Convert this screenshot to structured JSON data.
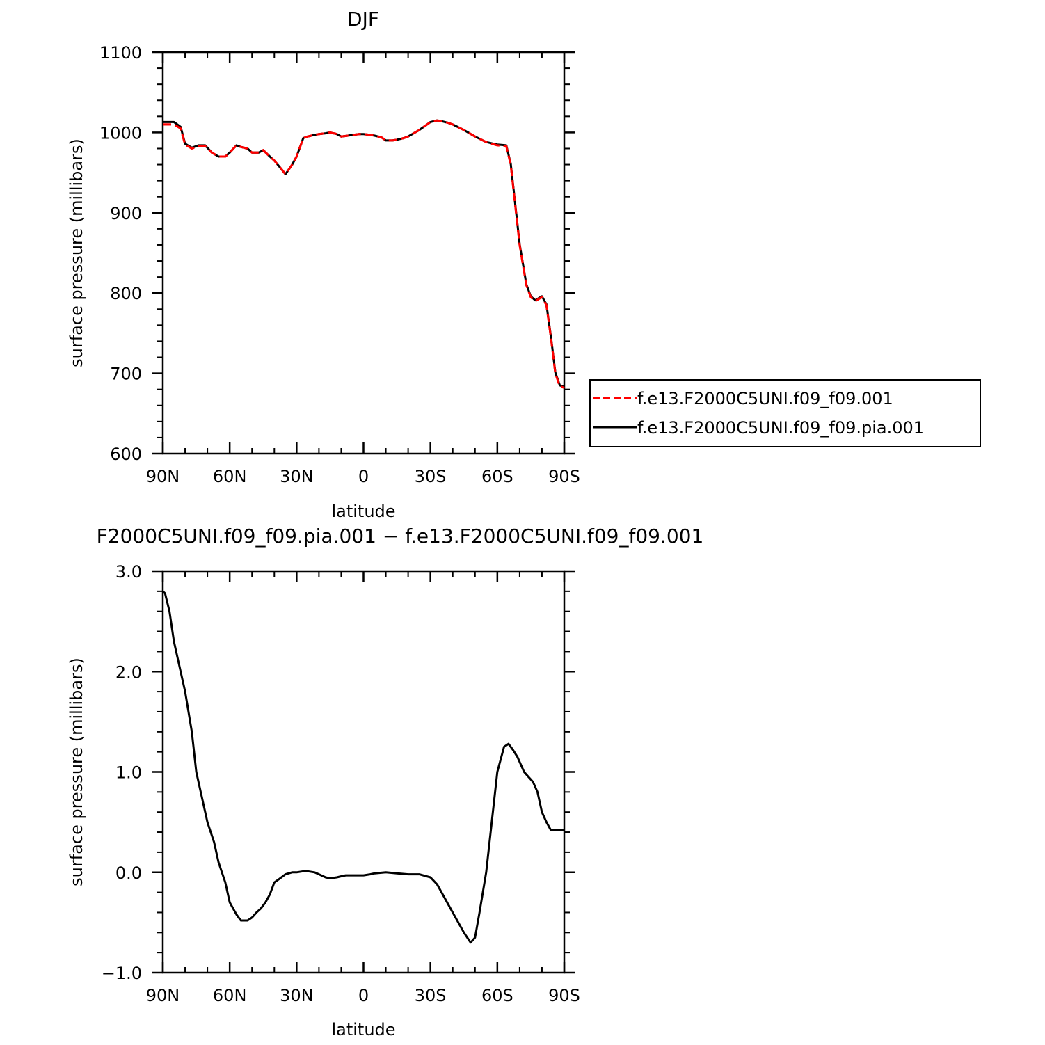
{
  "chart_data": [
    {
      "type": "line",
      "title": "DJF",
      "xlabel": "latitude",
      "ylabel": "surface pressure (millibars)",
      "xlim": [
        90,
        -90
      ],
      "ylim": [
        600,
        1100
      ],
      "x_ticks": [
        90,
        60,
        30,
        0,
        -30,
        -60,
        -90
      ],
      "x_tick_labels": [
        "90N",
        "60N",
        "30N",
        "0",
        "30S",
        "60S",
        "90S"
      ],
      "y_ticks": [
        600,
        700,
        800,
        900,
        1000,
        1100
      ],
      "y_tick_labels": [
        "600",
        "700",
        "800",
        "900",
        "1000",
        "1100"
      ],
      "legend_position": "right",
      "series": [
        {
          "name": "f.e13.F2000C5UNI.f09_f09.001",
          "color": "#ff0000",
          "dash": "dashed",
          "x": [
            90,
            85,
            82,
            80,
            77,
            74,
            71,
            68,
            65,
            62,
            60,
            57,
            55,
            52,
            50,
            47,
            45,
            42,
            40,
            37,
            35,
            32,
            30,
            27,
            25,
            22,
            20,
            17,
            15,
            12,
            10,
            7,
            5,
            2,
            0,
            -3,
            -5,
            -8,
            -10,
            -13,
            -15,
            -18,
            -20,
            -25,
            -30,
            -33,
            -35,
            -38,
            -40,
            -45,
            -50,
            -55,
            -60,
            -64,
            -66,
            -68,
            -70,
            -73,
            -75,
            -77,
            -80,
            -82,
            -84,
            -86,
            -88,
            -90
          ],
          "y": [
            1010,
            1010,
            1005,
            985,
            980,
            983,
            983,
            975,
            970,
            970,
            975,
            984,
            982,
            980,
            975,
            975,
            978,
            970,
            965,
            955,
            948,
            960,
            970,
            993,
            995,
            997,
            998,
            999,
            1000,
            998,
            995,
            996,
            997,
            998,
            998,
            997,
            996,
            994,
            990,
            990,
            991,
            993,
            995,
            1003,
            1013,
            1015,
            1014,
            1012,
            1010,
            1003,
            995,
            988,
            984,
            983,
            960,
            910,
            860,
            810,
            795,
            790,
            795,
            785,
            745,
            700,
            684,
            682
          ]
        },
        {
          "name": "f.e13.F2000C5UNI.f09_f09.pia.001",
          "color": "#000000",
          "dash": "solid",
          "x": [
            90,
            85,
            82,
            80,
            77,
            74,
            71,
            68,
            65,
            62,
            60,
            57,
            55,
            52,
            50,
            47,
            45,
            42,
            40,
            37,
            35,
            32,
            30,
            27,
            25,
            22,
            20,
            17,
            15,
            12,
            10,
            7,
            5,
            2,
            0,
            -3,
            -5,
            -8,
            -10,
            -13,
            -15,
            -18,
            -20,
            -25,
            -30,
            -33,
            -35,
            -38,
            -40,
            -45,
            -50,
            -55,
            -60,
            -64,
            -66,
            -68,
            -70,
            -73,
            -75,
            -77,
            -80,
            -82,
            -84,
            -86,
            -88,
            -90
          ],
          "y": [
            1013,
            1013,
            1007,
            986,
            981,
            984,
            984,
            975,
            970,
            970,
            975,
            984,
            982,
            980,
            975,
            975,
            978,
            970,
            965,
            955,
            948,
            960,
            970,
            993,
            995,
            997,
            998,
            999,
            1000,
            998,
            995,
            996,
            997,
            998,
            998,
            997,
            996,
            994,
            990,
            990,
            991,
            993,
            995,
            1003,
            1013,
            1015,
            1014,
            1012,
            1010,
            1003,
            995,
            988,
            985,
            984,
            961,
            911,
            861,
            811,
            796,
            791,
            796,
            786,
            746,
            701,
            685,
            683
          ]
        }
      ]
    },
    {
      "type": "line",
      "title": "F2000C5UNI.f09_f09.pia.001 − f.e13.F2000C5UNI.f09_f09.001",
      "xlabel": "latitude",
      "ylabel": "surface pressure (millibars)",
      "xlim": [
        90,
        -90
      ],
      "ylim": [
        -1.0,
        3.0
      ],
      "x_ticks": [
        90,
        60,
        30,
        0,
        -30,
        -60,
        -90
      ],
      "x_tick_labels": [
        "90N",
        "60N",
        "30N",
        "0",
        "30S",
        "60S",
        "90S"
      ],
      "y_ticks": [
        -1.0,
        0.0,
        1.0,
        2.0,
        3.0
      ],
      "y_tick_labels": [
        "−1.0",
        "0.0",
        "1.0",
        "2.0",
        "3.0"
      ],
      "series": [
        {
          "color": "#000000",
          "dash": "solid",
          "x": [
            90,
            89,
            87,
            85,
            83,
            80,
            77,
            75,
            72,
            70,
            67,
            65,
            62,
            60,
            57,
            55,
            52,
            50,
            48,
            46,
            44,
            42,
            40,
            38,
            35,
            32,
            30,
            27,
            25,
            22,
            20,
            17,
            15,
            12,
            10,
            8,
            5,
            2,
            0,
            -3,
            -5,
            -10,
            -15,
            -20,
            -25,
            -30,
            -33,
            -35,
            -40,
            -45,
            -48,
            -50,
            -52,
            -55,
            -58,
            -60,
            -63,
            -65,
            -67,
            -69,
            -70,
            -72,
            -74,
            -76,
            -78,
            -80,
            -82,
            -84,
            -86,
            -88,
            -90
          ],
          "y": [
            2.8,
            2.78,
            2.6,
            2.3,
            2.1,
            1.8,
            1.4,
            1.0,
            0.7,
            0.5,
            0.3,
            0.1,
            -0.1,
            -0.3,
            -0.42,
            -0.48,
            -0.48,
            -0.45,
            -0.4,
            -0.36,
            -0.3,
            -0.22,
            -0.1,
            -0.07,
            -0.02,
            0.0,
            0.0,
            0.01,
            0.01,
            0.0,
            -0.02,
            -0.05,
            -0.06,
            -0.05,
            -0.04,
            -0.03,
            -0.03,
            -0.03,
            -0.03,
            -0.02,
            -0.01,
            0.0,
            -0.01,
            -0.02,
            -0.02,
            -0.05,
            -0.12,
            -0.2,
            -0.4,
            -0.6,
            -0.7,
            -0.65,
            -0.4,
            0.0,
            0.6,
            1.0,
            1.25,
            1.28,
            1.22,
            1.15,
            1.1,
            1.0,
            0.95,
            0.9,
            0.8,
            0.6,
            0.5,
            0.42,
            0.42,
            0.42,
            0.42
          ]
        }
      ]
    }
  ]
}
